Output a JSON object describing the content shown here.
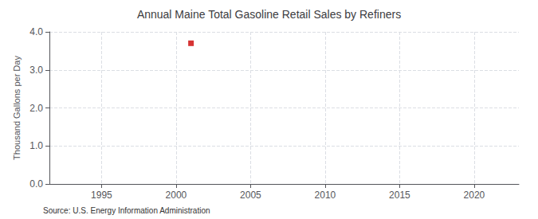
{
  "chart_data": {
    "type": "scatter",
    "title": "Annual Maine Total Gasoline Retail Sales by Refiners",
    "ylabel": "Thousand Gallons per Day",
    "annotation": "Source: U.S. Energy Information Administration",
    "x": [
      2001
    ],
    "values": [
      3.7
    ],
    "color": "#cc0000",
    "marker": "square",
    "xlim": [
      1991.5,
      2023
    ],
    "xticks": [
      1995,
      2000,
      2005,
      2010,
      2015,
      2020
    ],
    "ylim": [
      0.0,
      4.0
    ],
    "yticks": [
      {
        "value": 0,
        "label": "0.0"
      },
      {
        "value": 1,
        "label": "1.0"
      },
      {
        "value": 2,
        "label": "2.0"
      },
      {
        "value": 3,
        "label": "3.0"
      },
      {
        "value": 4,
        "label": "4.0"
      }
    ],
    "grid": true
  }
}
